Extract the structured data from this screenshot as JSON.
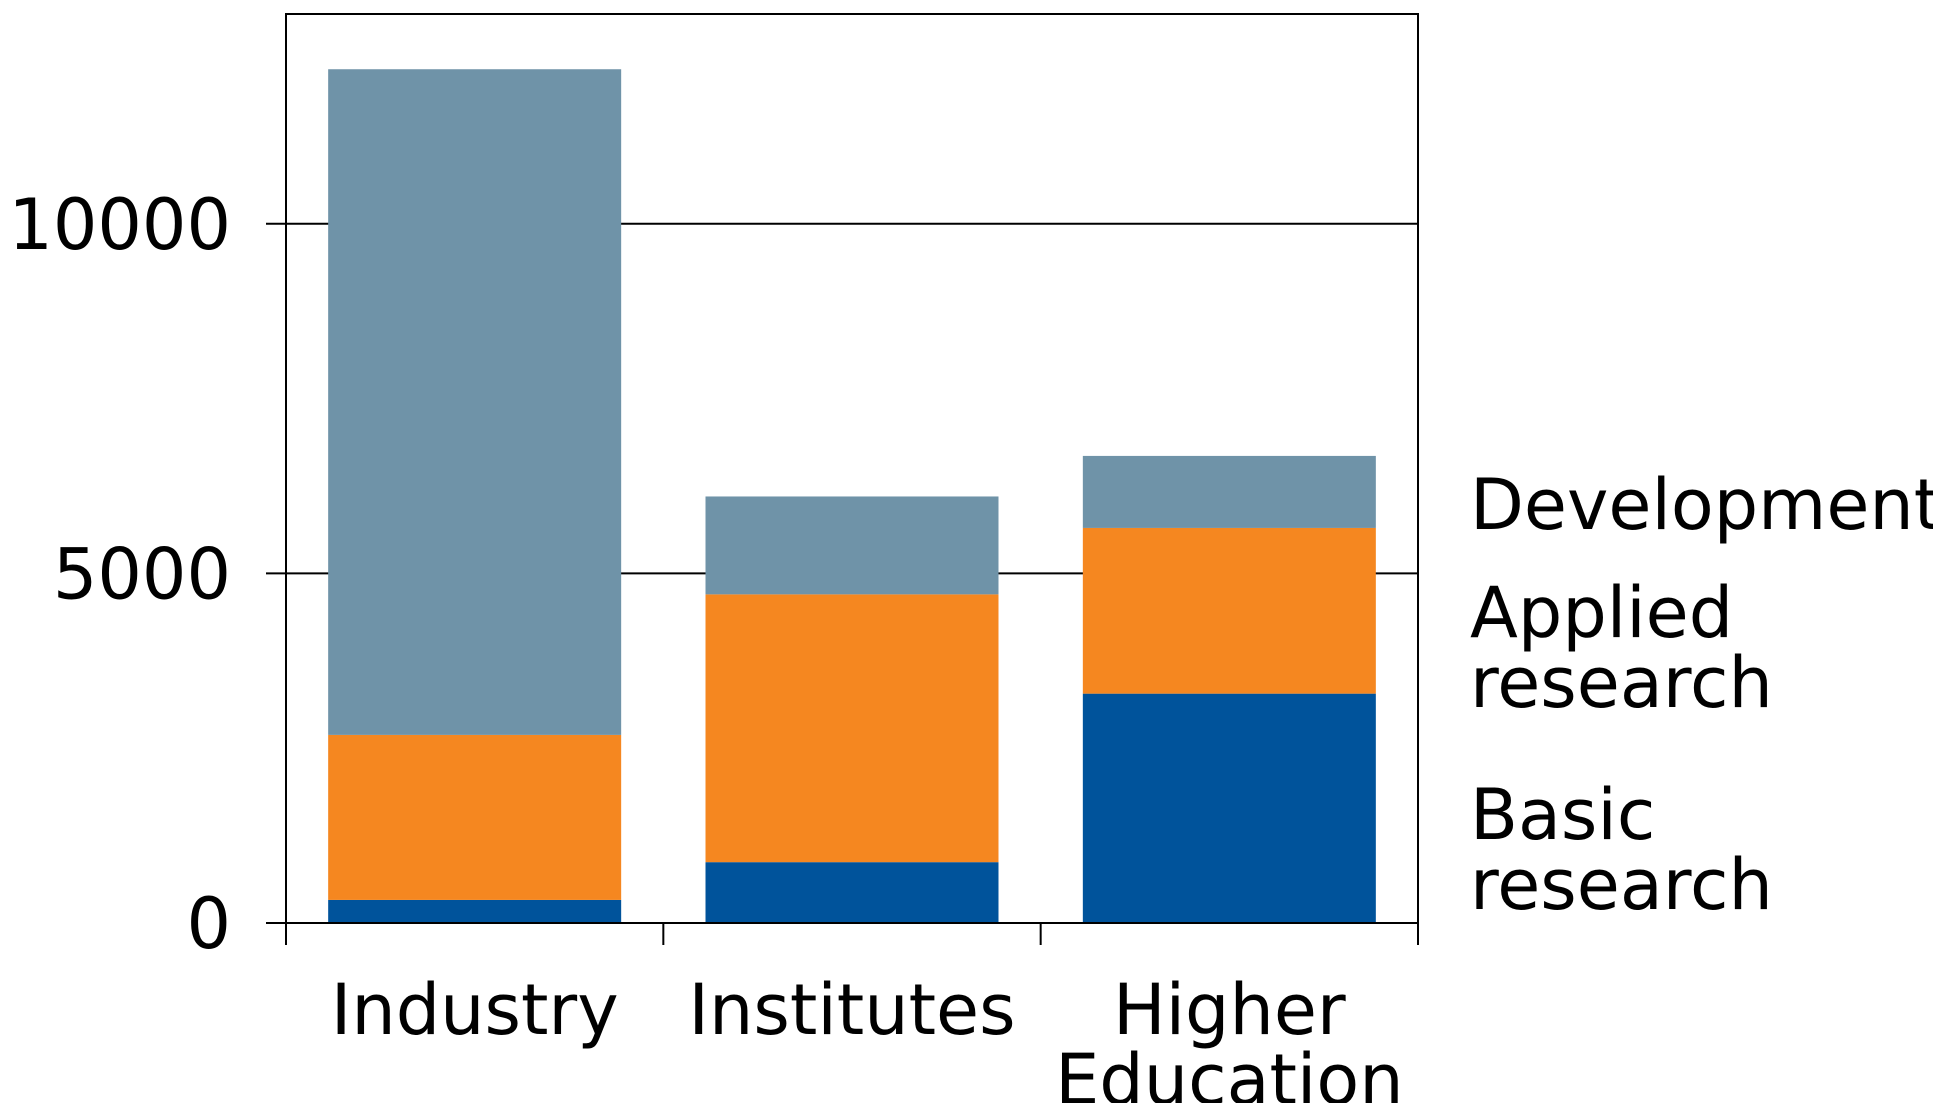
{
  "chart_data": {
    "type": "bar",
    "stacked": true,
    "categories": [
      "Industry",
      "Institutes",
      "Higher Education"
    ],
    "series": [
      {
        "name": "Basic research",
        "values": [
          330,
          870,
          3280
        ],
        "color": "#00539b"
      },
      {
        "name": "Applied research",
        "values": [
          2360,
          3830,
          2370
        ],
        "color": "#f58720"
      },
      {
        "name": "Development",
        "values": [
          9520,
          1400,
          1030
        ],
        "color": "#6f93a8"
      }
    ],
    "ylim": [
      0,
      13000
    ],
    "yticks": [
      0,
      5000,
      10000
    ],
    "ytick_labels": [
      "0",
      "5000",
      "10000"
    ],
    "grid": true,
    "legend_placement": "right",
    "legend_labels": [
      {
        "lines": [
          "Development"
        ]
      },
      {
        "lines": [
          "Applied",
          "research"
        ]
      },
      {
        "lines": [
          "Basic",
          "research"
        ]
      }
    ],
    "category_label_lines": [
      [
        "Industry"
      ],
      [
        "Institutes"
      ],
      [
        "Higher",
        "Education"
      ]
    ],
    "title": "",
    "xlabel": "",
    "ylabel": ""
  }
}
